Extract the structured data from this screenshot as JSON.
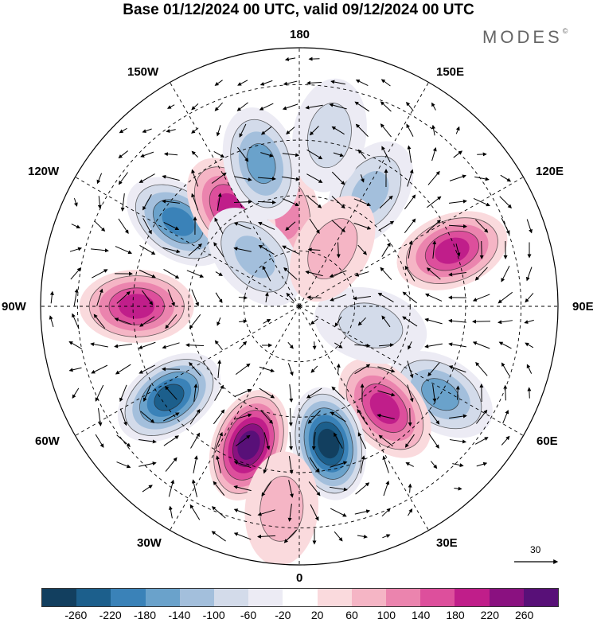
{
  "title": "Base 01/12/2024 00 UTC, valid 09/12/2024 00 UTC",
  "brand": "MODES",
  "brand_mark": "©",
  "meridian_labels": {
    "top": "180",
    "bottom": "0",
    "left": "90W",
    "right": "90E",
    "nw_upper": "150W",
    "nw_lower": "120W",
    "ne_upper": "150E",
    "ne_lower": "120E",
    "sw_upper": "60W",
    "sw_lower": "30W",
    "se_upper": "60E",
    "se_lower": "30E"
  },
  "reference_vector": {
    "value": "30",
    "icon": "arrow-right-icon"
  },
  "colorbar": {
    "colors": [
      "#123f5f",
      "#1c5f8c",
      "#3a82b8",
      "#6aa2cb",
      "#a3bfdc",
      "#d3dbea",
      "#ecebf4",
      "#ffffff",
      "#fadadd",
      "#f5b5c5",
      "#eb84ae",
      "#dd4f9c",
      "#c01e8a",
      "#8a1180",
      "#581078"
    ],
    "ticks": [
      "-260",
      "-220",
      "-180",
      "-140",
      "-100",
      "-60",
      "-20",
      "20",
      "60",
      "100",
      "140",
      "180",
      "220",
      "260"
    ]
  },
  "anomaly_centers": [
    {
      "lon": 190,
      "colat": 25,
      "value": 100
    },
    {
      "lon": 148,
      "colat": 36,
      "value": -100
    },
    {
      "lon": 110,
      "colat": 44,
      "value": 160
    },
    {
      "lon": 58,
      "colat": 45,
      "value": -140
    },
    {
      "lon": 40,
      "colat": 36,
      "value": 180
    },
    {
      "lon": 12,
      "colat": 38,
      "value": -250
    },
    {
      "lon": 340,
      "colat": 40,
      "value": 260
    },
    {
      "lon": 305,
      "colat": 43,
      "value": -200
    },
    {
      "lon": 270,
      "colat": 44,
      "value": 150
    },
    {
      "lon": 235,
      "colat": 40,
      "value": -170
    },
    {
      "lon": 215,
      "colat": 32,
      "value": 160
    },
    {
      "lon": 195,
      "colat": 40,
      "value": -110
    },
    {
      "lon": 222,
      "colat": 18,
      "value": -90
    },
    {
      "lon": 75,
      "colat": 20,
      "value": -60
    },
    {
      "lon": 150,
      "colat": 18,
      "value": 60
    },
    {
      "lon": 170,
      "colat": 47,
      "value": -60
    },
    {
      "lon": 355,
      "colat": 55,
      "value": 60
    }
  ]
}
